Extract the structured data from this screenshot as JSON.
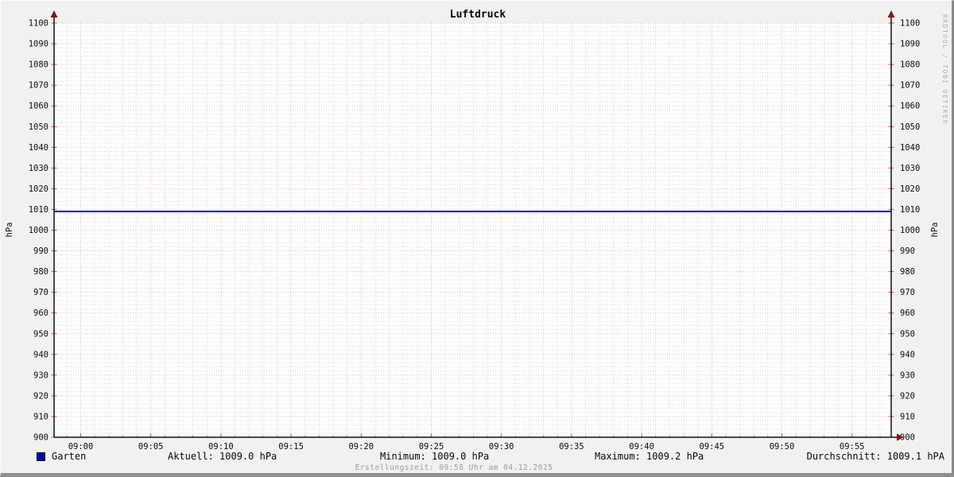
{
  "title": "Luftdruck",
  "watermark": "RRDTOOL / TOBI OETIKER",
  "y_axis_label_left": "hPa",
  "y_axis_label_right": "hPa",
  "legend": {
    "series_label": "Garten",
    "aktuell": "Aktuell: 1009.0 hPa",
    "minimum": "Minimum: 1009.0 hPa",
    "maximum": "Maximum: 1009.2 hPa",
    "durchschnitt": "Durchschnitt: 1009.1 hPA"
  },
  "footer": {
    "creation": "Erstellungszeit: 09:58 Uhr am 04.12.2025"
  },
  "chart_data": {
    "type": "line",
    "title": "Luftdruck",
    "ylabel": "hPa",
    "ylim": [
      900,
      1100
    ],
    "y_major_step": 10,
    "y_minor_step": 2,
    "x_ticks": [
      "09:00",
      "09:05",
      "09:10",
      "09:15",
      "09:20",
      "09:25",
      "09:30",
      "09:35",
      "09:40",
      "09:45",
      "09:50",
      "09:55"
    ],
    "x_minor_per_major": 5,
    "grid": true,
    "legend_position": "bottom",
    "series": [
      {
        "name": "Garten",
        "color": "#0000b4",
        "x": [
          "09:00",
          "09:05",
          "09:10",
          "09:15",
          "09:20",
          "09:25",
          "09:30",
          "09:35",
          "09:40",
          "09:45",
          "09:50",
          "09:55"
        ],
        "values": [
          1009.0,
          1009.0,
          1009.0,
          1009.0,
          1009.0,
          1009.0,
          1009.0,
          1009.0,
          1009.0,
          1009.0,
          1009.0,
          1009.0
        ]
      }
    ],
    "stats": {
      "aktuell": 1009.0,
      "minimum": 1009.0,
      "maximum": 1009.2,
      "durchschnitt": 1009.1
    },
    "colors": {
      "canvas": "#ffffff",
      "major_grid": "#eeb6b6",
      "minor_grid": "#d6d6d6",
      "axis": "#111111",
      "arrow": "#8b1212",
      "major_tick": "#cc5555",
      "minor_tick": "#aaaaaa"
    }
  }
}
